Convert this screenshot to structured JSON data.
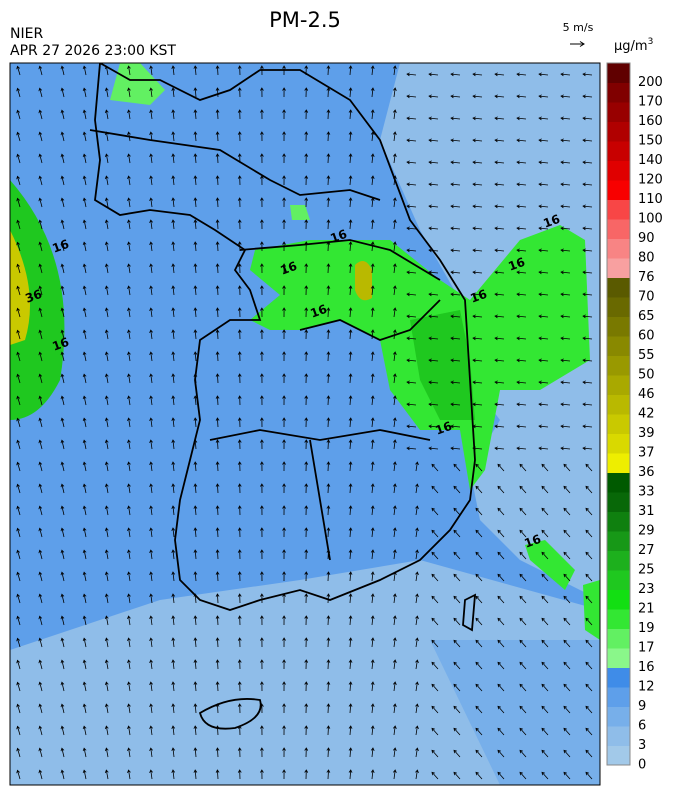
{
  "header": {
    "title": "PM-2.5",
    "agency": "NIER",
    "datetime": "APR 27 2026 23:00 KST",
    "wind_scale": "5 m/s"
  },
  "colorbar": {
    "unit": "μg/m",
    "unit_power": "3",
    "labels": [
      0,
      3,
      6,
      9,
      12,
      16,
      17,
      19,
      21,
      23,
      25,
      27,
      29,
      31,
      33,
      36,
      37,
      39,
      42,
      46,
      50,
      55,
      60,
      65,
      70,
      76,
      80,
      90,
      100,
      110,
      120,
      140,
      150,
      160,
      170,
      200
    ],
    "colors": [
      "#a2c9e9",
      "#8fbde9",
      "#77afea",
      "#5e9fea",
      "#3f8ce8",
      "#8af78a",
      "#62f062",
      "#33e733",
      "#12df12",
      "#1fc81f",
      "#1db01d",
      "#179817",
      "#0f800f",
      "#086808",
      "#005a00",
      "#eeee00",
      "#d9d900",
      "#c9c900",
      "#b9b900",
      "#a9a900",
      "#999900",
      "#898900",
      "#797900",
      "#696900",
      "#5a5a00",
      "#f8a0a0",
      "#f88484",
      "#f86666",
      "#f84646",
      "#f80000",
      "#e00000",
      "#c80000",
      "#b00000",
      "#980000",
      "#800000",
      "#600000"
    ]
  },
  "map": {
    "contour_labels": [
      "16",
      "16",
      "16",
      "16",
      "16",
      "16",
      "16",
      "16",
      "16",
      "36",
      "16"
    ]
  }
}
